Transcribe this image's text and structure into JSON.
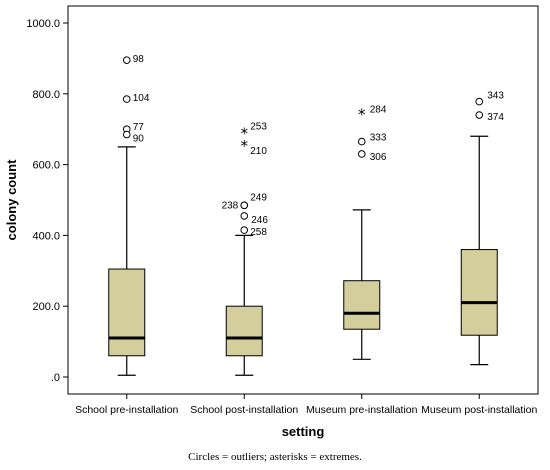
{
  "chart_data": {
    "type": "boxplot",
    "title": "",
    "xlabel": "setting",
    "ylabel": "colony count",
    "ylim": [
      0,
      1000
    ],
    "y_ticks": [
      {
        "value": 0,
        "label": ".0"
      },
      {
        "value": 200,
        "label": "200.0"
      },
      {
        "value": 400,
        "label": "400.0"
      },
      {
        "value": 600,
        "label": "600.0"
      },
      {
        "value": 800,
        "label": "800.0"
      },
      {
        "value": 1000,
        "label": "1000.0"
      }
    ],
    "grid": false,
    "box_color": "#d4cd9c",
    "groups": [
      {
        "category": "School pre-installation",
        "whisker_low": 5,
        "q1": 60,
        "median": 110,
        "q3": 305,
        "whisker_high": 650,
        "outliers": [
          {
            "id": "98",
            "value": 895,
            "kind": "circle"
          },
          {
            "id": "104",
            "value": 785,
            "kind": "circle"
          },
          {
            "id": "77",
            "value": 700,
            "kind": "circle"
          },
          {
            "id": "90",
            "value": 685,
            "kind": "circle"
          }
        ]
      },
      {
        "category": "School post-installation",
        "whisker_low": 5,
        "q1": 60,
        "median": 110,
        "q3": 200,
        "whisker_high": 400,
        "outliers": [
          {
            "id": "253",
            "value": 690,
            "kind": "asterisk"
          },
          {
            "id": "210",
            "value": 655,
            "kind": "asterisk"
          },
          {
            "id": "249",
            "value": 485,
            "kind": "circle"
          },
          {
            "id": "238",
            "value": 485,
            "kind": "circle"
          },
          {
            "id": "246",
            "value": 455,
            "kind": "circle"
          },
          {
            "id": "258",
            "value": 415,
            "kind": "circle"
          }
        ]
      },
      {
        "category": "Museum pre-installation",
        "whisker_low": 50,
        "q1": 135,
        "median": 180,
        "q3": 272,
        "whisker_high": 472,
        "outliers": [
          {
            "id": "284",
            "value": 745,
            "kind": "asterisk"
          },
          {
            "id": "333",
            "value": 665,
            "kind": "circle"
          },
          {
            "id": "306",
            "value": 630,
            "kind": "circle"
          }
        ]
      },
      {
        "category": "Museum post-installation",
        "whisker_low": 35,
        "q1": 118,
        "median": 210,
        "q3": 360,
        "whisker_high": 680,
        "outliers": [
          {
            "id": "343",
            "value": 778,
            "kind": "circle"
          },
          {
            "id": "374",
            "value": 740,
            "kind": "circle"
          }
        ]
      }
    ]
  },
  "caption": "Circles = outliers; asterisks = extremes."
}
